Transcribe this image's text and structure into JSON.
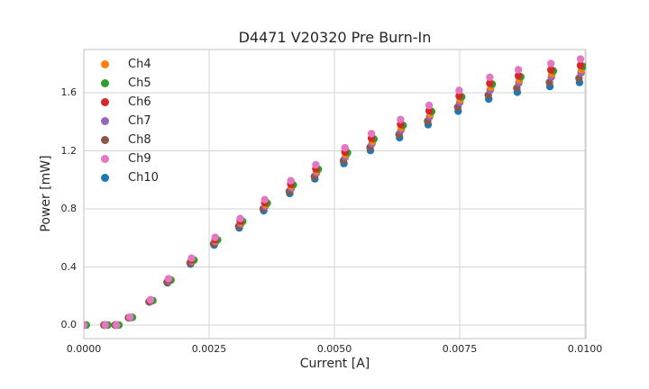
{
  "chart_data": {
    "type": "scatter",
    "title": "D4471 V20320 Pre Burn-In",
    "xlabel": "Current [A]",
    "ylabel": "Power [mW]",
    "xlim": [
      0.0,
      0.01
    ],
    "ylim": [
      -0.093,
      1.898
    ],
    "grid": true,
    "legend_position": "upper left",
    "marker": "circle",
    "marker_radius_px": 4.2,
    "grid_color": "#d3d3d3",
    "text_color": "#262626",
    "xticks": {
      "values": [
        0.0,
        0.0025,
        0.005,
        0.0075,
        0.01
      ],
      "labels": [
        "0.0000",
        "0.0025",
        "0.0050",
        "0.0075",
        "0.0100"
      ]
    },
    "yticks": {
      "values": [
        0.0,
        0.4,
        0.8,
        1.2,
        1.6
      ],
      "labels": [
        "0.0",
        "0.4",
        "0.8",
        "1.2",
        "1.6"
      ]
    },
    "x": [
      0.0,
      0.00043,
      0.00065,
      0.00092,
      0.00133,
      0.00169,
      0.00215,
      0.00262,
      0.00312,
      0.00361,
      0.00413,
      0.00463,
      0.00521,
      0.00574,
      0.00632,
      0.00689,
      0.00749,
      0.0081,
      0.00867,
      0.00932,
      0.00991
    ],
    "series": [
      {
        "name": "Ch4",
        "color": "#ff7f0e",
        "z": 4,
        "x_offset": 2e-05,
        "values": [
          0,
          0,
          0,
          0.052,
          0.167,
          0.307,
          0.442,
          0.58,
          0.705,
          0.829,
          0.954,
          1.059,
          1.172,
          1.265,
          1.359,
          1.452,
          1.552,
          1.638,
          1.688,
          1.729,
          1.759
        ]
      },
      {
        "name": "Ch5",
        "color": "#2ca02c",
        "z": 5,
        "x_offset": 5e-05,
        "values": [
          0,
          0,
          0,
          0.053,
          0.169,
          0.31,
          0.448,
          0.587,
          0.714,
          0.84,
          0.966,
          1.073,
          1.187,
          1.282,
          1.376,
          1.471,
          1.572,
          1.659,
          1.71,
          1.751,
          1.782
        ]
      },
      {
        "name": "Ch6",
        "color": "#d62728",
        "z": 6,
        "x_offset": 0.0,
        "values": [
          0,
          0,
          0,
          0.053,
          0.17,
          0.312,
          0.45,
          0.59,
          0.716,
          0.843,
          0.97,
          1.077,
          1.192,
          1.287,
          1.382,
          1.477,
          1.578,
          1.666,
          1.717,
          1.758,
          1.789
        ]
      },
      {
        "name": "Ch7",
        "color": "#9467bd",
        "z": 3,
        "x_offset": 1e-05,
        "values": [
          0,
          0,
          0,
          0.052,
          0.165,
          0.303,
          0.437,
          0.573,
          0.696,
          0.819,
          0.942,
          1.047,
          1.158,
          1.25,
          1.343,
          1.435,
          1.533,
          1.619,
          1.668,
          1.708,
          1.738
        ]
      },
      {
        "name": "Ch8",
        "color": "#8c564b",
        "z": 2,
        "x_offset": -3e-05,
        "values": [
          0,
          0,
          0,
          0.051,
          0.161,
          0.296,
          0.428,
          0.561,
          0.681,
          0.802,
          0.922,
          1.024,
          1.133,
          1.224,
          1.314,
          1.405,
          1.501,
          1.584,
          1.633,
          1.672,
          1.701
        ]
      },
      {
        "name": "Ch9",
        "color": "#e377c2",
        "z": 7,
        "x_offset": 0.0,
        "values": [
          0,
          0,
          0,
          0.054,
          0.174,
          0.319,
          0.461,
          0.604,
          0.734,
          0.864,
          0.994,
          1.104,
          1.221,
          1.318,
          1.416,
          1.513,
          1.617,
          1.707,
          1.759,
          1.801,
          1.832
        ]
      },
      {
        "name": "Ch10",
        "color": "#1f77b4",
        "z": 1,
        "x_offset": -2e-05,
        "values": [
          0,
          0,
          0,
          0.05,
          0.159,
          0.291,
          0.42,
          0.551,
          0.669,
          0.788,
          0.906,
          1.007,
          1.113,
          1.202,
          1.291,
          1.38,
          1.474,
          1.557,
          1.604,
          1.643,
          1.671
        ]
      }
    ]
  }
}
